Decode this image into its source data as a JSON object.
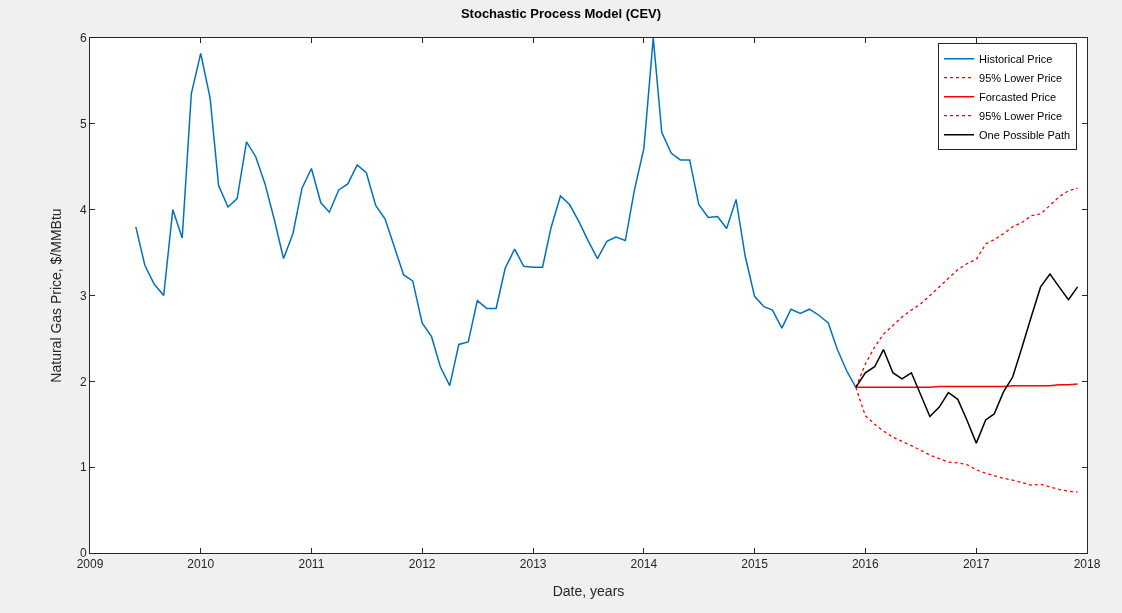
{
  "chart_data": {
    "type": "line",
    "title": "Stochastic Process Model (CEV)",
    "xlabel": "Date, years",
    "ylabel": "Natural Gas Price, $/MMBtu",
    "xlim": [
      "2009",
      "2018"
    ],
    "xticks": [
      {
        "value": "2009",
        "label": "2009"
      },
      {
        "value": "2010",
        "label": "2010"
      },
      {
        "value": "2011",
        "label": "2011"
      },
      {
        "value": "2012",
        "label": "2012"
      },
      {
        "value": "2013",
        "label": "2013"
      },
      {
        "value": "2014",
        "label": "2014"
      },
      {
        "value": "2015",
        "label": "2015"
      },
      {
        "value": "2016",
        "label": "2016"
      },
      {
        "value": "2017",
        "label": "2017"
      },
      {
        "value": "2018",
        "label": "2018"
      }
    ],
    "ylim": [
      0,
      6
    ],
    "yticks": [
      0,
      1,
      2,
      3,
      4,
      5,
      6
    ],
    "legend": "top right",
    "marker": "none",
    "series": [
      {
        "name": "Historical Price",
        "color": "#0072bd",
        "line_style": "solid",
        "x": [
          "2009-06",
          "2009-07",
          "2009-08",
          "2009-09",
          "2009-10",
          "2009-11",
          "2009-12",
          "2010-01",
          "2010-02",
          "2010-03",
          "2010-04",
          "2010-05",
          "2010-06",
          "2010-07",
          "2010-08",
          "2010-09",
          "2010-10",
          "2010-11",
          "2010-12",
          "2011-01",
          "2011-02",
          "2011-03",
          "2011-04",
          "2011-05",
          "2011-06",
          "2011-07",
          "2011-08",
          "2011-09",
          "2011-10",
          "2011-11",
          "2011-12",
          "2012-01",
          "2012-02",
          "2012-03",
          "2012-04",
          "2012-05",
          "2012-06",
          "2012-07",
          "2012-08",
          "2012-09",
          "2012-10",
          "2012-11",
          "2012-12",
          "2013-01",
          "2013-02",
          "2013-03",
          "2013-04",
          "2013-05",
          "2013-06",
          "2013-07",
          "2013-08",
          "2013-09",
          "2013-10",
          "2013-11",
          "2013-12",
          "2014-01",
          "2014-02",
          "2014-03",
          "2014-04",
          "2014-05",
          "2014-06",
          "2014-07",
          "2014-08",
          "2014-09",
          "2014-10",
          "2014-11",
          "2014-12",
          "2015-01",
          "2015-02",
          "2015-03",
          "2015-04",
          "2015-05",
          "2015-06",
          "2015-07",
          "2015-08",
          "2015-09",
          "2015-10",
          "2015-11",
          "2015-12"
        ],
        "values": [
          3.8,
          3.35,
          3.13,
          3.0,
          4.0,
          3.67,
          5.35,
          5.82,
          5.3,
          4.28,
          4.03,
          4.13,
          4.79,
          4.62,
          4.3,
          3.88,
          3.43,
          3.72,
          4.25,
          4.48,
          4.08,
          3.97,
          4.23,
          4.3,
          4.52,
          4.43,
          4.05,
          3.89,
          3.57,
          3.24,
          3.17,
          2.68,
          2.52,
          2.17,
          1.95,
          2.43,
          2.46,
          2.94,
          2.85,
          2.85,
          3.32,
          3.54,
          3.34,
          3.33,
          3.33,
          3.79,
          4.16,
          4.06,
          3.86,
          3.64,
          3.43,
          3.63,
          3.68,
          3.64,
          4.23,
          4.71,
          6.0,
          4.9,
          4.66,
          4.58,
          4.58,
          4.06,
          3.91,
          3.92,
          3.78,
          4.12,
          3.46,
          2.99,
          2.87,
          2.83,
          2.62,
          2.84,
          2.79,
          2.84,
          2.77,
          2.68,
          2.37,
          2.12,
          1.93
        ]
      },
      {
        "name": "95% Lower Price",
        "color": "#ff0000",
        "line_style": "dotted",
        "x": [
          "2015-12",
          "2016-01",
          "2016-02",
          "2016-03",
          "2016-04",
          "2016-05",
          "2016-06",
          "2016-07",
          "2016-08",
          "2016-09",
          "2016-10",
          "2016-11",
          "2016-12",
          "2017-01",
          "2017-02",
          "2017-03",
          "2017-04",
          "2017-05",
          "2017-06",
          "2017-07",
          "2017-08",
          "2017-09",
          "2017-10",
          "2017-11",
          "2017-12"
        ],
        "values": [
          1.93,
          1.6,
          1.5,
          1.42,
          1.35,
          1.3,
          1.25,
          1.2,
          1.14,
          1.1,
          1.06,
          1.05,
          1.03,
          0.97,
          0.93,
          0.9,
          0.87,
          0.85,
          0.82,
          0.79,
          0.8,
          0.77,
          0.74,
          0.72,
          0.71
        ]
      },
      {
        "name": "Forcasted Price",
        "color": "#ff0000",
        "line_style": "solid",
        "x": [
          "2015-12",
          "2016-01",
          "2016-02",
          "2016-03",
          "2016-04",
          "2016-05",
          "2016-06",
          "2016-07",
          "2016-08",
          "2016-09",
          "2016-10",
          "2016-11",
          "2016-12",
          "2017-01",
          "2017-02",
          "2017-03",
          "2017-04",
          "2017-05",
          "2017-06",
          "2017-07",
          "2017-08",
          "2017-09",
          "2017-10",
          "2017-11",
          "2017-12"
        ],
        "values": [
          1.93,
          1.93,
          1.93,
          1.93,
          1.93,
          1.93,
          1.93,
          1.93,
          1.93,
          1.94,
          1.94,
          1.94,
          1.94,
          1.94,
          1.94,
          1.94,
          1.94,
          1.95,
          1.95,
          1.95,
          1.95,
          1.95,
          1.96,
          1.96,
          1.97
        ]
      },
      {
        "name": "95% Lower Price",
        "color": "#ff0000",
        "line_style": "dotted",
        "x": [
          "2015-12",
          "2016-01",
          "2016-02",
          "2016-03",
          "2016-04",
          "2016-05",
          "2016-06",
          "2016-07",
          "2016-08",
          "2016-09",
          "2016-10",
          "2016-11",
          "2016-12",
          "2017-01",
          "2017-02",
          "2017-03",
          "2017-04",
          "2017-05",
          "2017-06",
          "2017-07",
          "2017-08",
          "2017-09",
          "2017-10",
          "2017-11",
          "2017-12"
        ],
        "values": [
          1.93,
          2.2,
          2.4,
          2.55,
          2.65,
          2.75,
          2.83,
          2.9,
          3.0,
          3.1,
          3.2,
          3.3,
          3.37,
          3.42,
          3.6,
          3.65,
          3.72,
          3.8,
          3.85,
          3.93,
          3.95,
          4.05,
          4.15,
          4.22,
          4.25
        ]
      },
      {
        "name": "One Possible Path",
        "color": "#000000",
        "line_style": "solid",
        "x": [
          "2015-12",
          "2016-01",
          "2016-02",
          "2016-03",
          "2016-04",
          "2016-05",
          "2016-06",
          "2016-07",
          "2016-08",
          "2016-09",
          "2016-10",
          "2016-11",
          "2016-12",
          "2017-01",
          "2017-02",
          "2017-03",
          "2017-04",
          "2017-05",
          "2017-06",
          "2017-07",
          "2017-08",
          "2017-09",
          "2017-10",
          "2017-11",
          "2017-12"
        ],
        "values": [
          1.93,
          2.1,
          2.17,
          2.37,
          2.1,
          2.03,
          2.1,
          1.85,
          1.59,
          1.7,
          1.87,
          1.79,
          1.55,
          1.28,
          1.55,
          1.62,
          1.88,
          2.05,
          2.4,
          2.75,
          3.1,
          3.25,
          3.1,
          2.95,
          3.1
        ]
      }
    ]
  }
}
